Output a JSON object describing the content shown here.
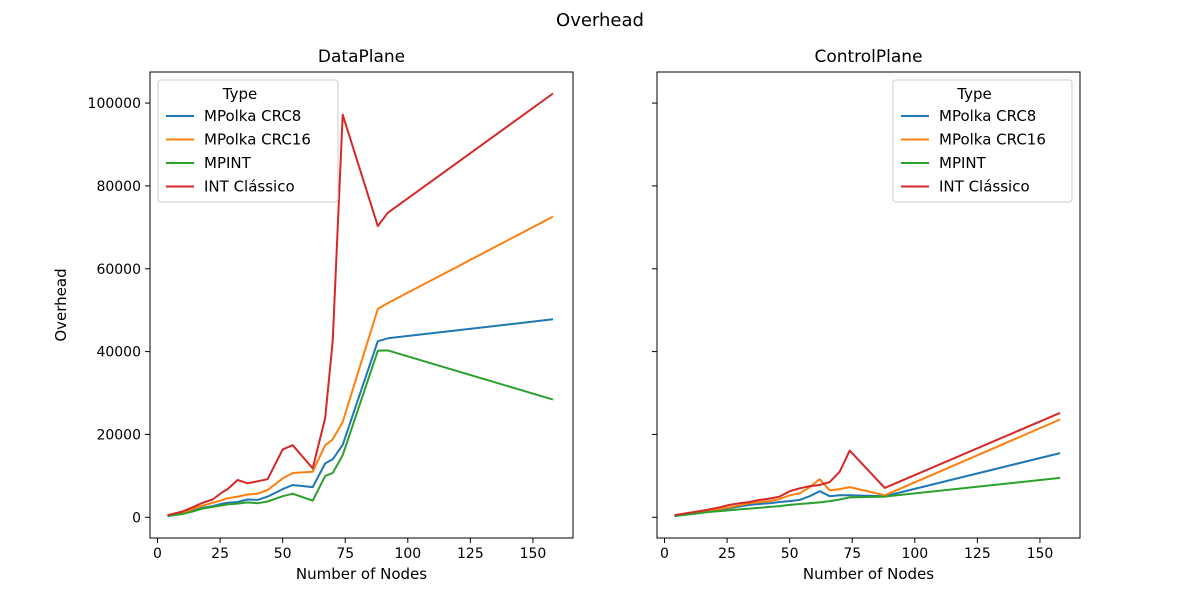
{
  "figure_title": "Overhead",
  "legend_title": "Type",
  "colors": {
    "MPolka CRC8": "#1f77b4",
    "MPolka CRC16": "#ff7f0e",
    "MPINT": "#2ca02c",
    "INT Clássico": "#d62728"
  },
  "chart_data": [
    {
      "type": "line",
      "title": "DataPlane",
      "xlabel": "Number of Nodes",
      "ylabel": "Overhead",
      "xlim": [
        -3,
        166
      ],
      "ylim": [
        -5000,
        107500
      ],
      "xticks": [
        0,
        25,
        50,
        75,
        100,
        125,
        150
      ],
      "yticks": [
        0,
        20000,
        40000,
        60000,
        80000,
        100000
      ],
      "xtick_labels": [
        "0",
        "25",
        "50",
        "75",
        "100",
        "125",
        "150"
      ],
      "ytick_labels": [
        "0",
        "20000",
        "40000",
        "60000",
        "80000",
        "100000"
      ],
      "grid": false,
      "legend_loc": "upper-left",
      "series": [
        {
          "name": "MPolka CRC8",
          "x": [
            4,
            10,
            14,
            18,
            22,
            26,
            28,
            32,
            36,
            40,
            44,
            50,
            54,
            62,
            67,
            70,
            74,
            88,
            92,
            158
          ],
          "y": [
            300,
            900,
            1600,
            2300,
            2700,
            3300,
            3500,
            3700,
            4300,
            4200,
            5000,
            6800,
            7800,
            7300,
            13000,
            14000,
            17500,
            42500,
            43200,
            47800
          ]
        },
        {
          "name": "MPolka CRC16",
          "x": [
            4,
            10,
            14,
            18,
            22,
            26,
            28,
            32,
            36,
            40,
            44,
            50,
            54,
            62,
            67,
            70,
            74,
            88,
            92,
            158
          ],
          "y": [
            400,
            1100,
            2000,
            2800,
            3500,
            4200,
            4600,
            5000,
            5500,
            5700,
            6600,
            9400,
            10700,
            11000,
            17400,
            18800,
            23000,
            50300,
            51700,
            72600
          ]
        },
        {
          "name": "MPINT",
          "x": [
            4,
            10,
            14,
            18,
            22,
            26,
            28,
            32,
            36,
            40,
            44,
            50,
            54,
            62,
            67,
            70,
            74,
            88,
            92,
            158
          ],
          "y": [
            300,
            800,
            1400,
            2100,
            2500,
            2900,
            3100,
            3300,
            3600,
            3400,
            3800,
            5100,
            5700,
            4000,
            10000,
            10700,
            15000,
            40200,
            40300,
            28400
          ]
        },
        {
          "name": "INT Clássico",
          "x": [
            4,
            10,
            14,
            18,
            22,
            26,
            28,
            32,
            36,
            40,
            44,
            50,
            54,
            62,
            67,
            70,
            74,
            88,
            92,
            158
          ],
          "y": [
            500,
            1400,
            2400,
            3500,
            4300,
            6100,
            6800,
            9000,
            8200,
            8700,
            9200,
            16400,
            17400,
            11800,
            24000,
            42500,
            97200,
            70300,
            73500,
            102300
          ]
        }
      ]
    },
    {
      "type": "line",
      "title": "ControlPlane",
      "xlabel": "Number of Nodes",
      "ylabel": "",
      "xlim": [
        -3,
        166
      ],
      "ylim": [
        -5000,
        107500
      ],
      "xticks": [
        0,
        25,
        50,
        75,
        100,
        125,
        150
      ],
      "yticks": [
        0,
        20000,
        40000,
        60000,
        80000,
        100000
      ],
      "xtick_labels": [
        "0",
        "25",
        "50",
        "75",
        "100",
        "125",
        "150"
      ],
      "ytick_labels": [],
      "grid": false,
      "legend_loc": "upper-right",
      "series": [
        {
          "name": "MPolka CRC8",
          "x": [
            4,
            10,
            14,
            18,
            22,
            26,
            30,
            34,
            38,
            42,
            46,
            50,
            54,
            58,
            62,
            66,
            70,
            74,
            88,
            158
          ],
          "y": [
            300,
            800,
            1200,
            1600,
            1900,
            2200,
            2600,
            3000,
            3200,
            3400,
            3700,
            3900,
            4200,
            5100,
            6300,
            5100,
            5300,
            5300,
            5100,
            15500
          ]
        },
        {
          "name": "MPolka CRC16",
          "x": [
            4,
            10,
            14,
            18,
            22,
            26,
            30,
            34,
            38,
            42,
            46,
            50,
            54,
            58,
            62,
            66,
            70,
            74,
            88,
            158
          ],
          "y": [
            400,
            900,
            1300,
            1700,
            2000,
            2400,
            2900,
            3400,
            3700,
            3900,
            4400,
            5300,
            5800,
            7300,
            9200,
            6500,
            6800,
            7300,
            5300,
            23600
          ]
        },
        {
          "name": "MPINT",
          "x": [
            4,
            10,
            14,
            18,
            22,
            26,
            30,
            34,
            38,
            42,
            46,
            50,
            54,
            58,
            62,
            66,
            70,
            74,
            88,
            158
          ],
          "y": [
            300,
            700,
            1000,
            1300,
            1500,
            1700,
            1900,
            2100,
            2300,
            2500,
            2700,
            3000,
            3200,
            3400,
            3600,
            3900,
            4300,
            4800,
            5000,
            9500
          ]
        },
        {
          "name": "INT Clássico",
          "x": [
            4,
            10,
            14,
            18,
            22,
            26,
            30,
            34,
            38,
            42,
            46,
            50,
            54,
            58,
            62,
            66,
            70,
            74,
            88,
            158
          ],
          "y": [
            500,
            1100,
            1500,
            1900,
            2400,
            3000,
            3400,
            3700,
            4200,
            4500,
            5000,
            6300,
            7000,
            7500,
            7800,
            8500,
            11000,
            16100,
            7100,
            25200
          ]
        }
      ]
    }
  ]
}
